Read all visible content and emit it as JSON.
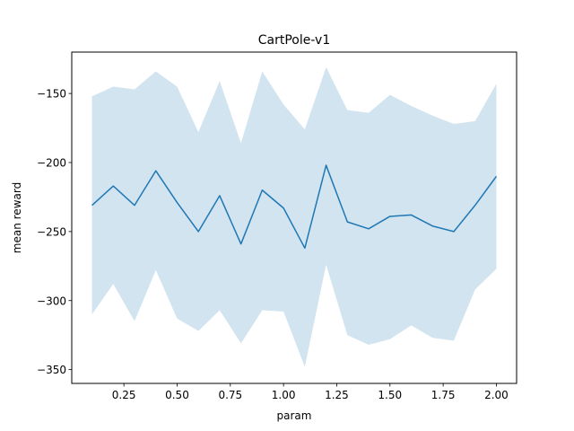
{
  "chart_data": {
    "type": "line",
    "title": "CartPole-v1",
    "xlabel": "param",
    "ylabel": "mean reward",
    "xlim": [
      0.005,
      2.095
    ],
    "ylim": [
      -360,
      -120
    ],
    "xticks": [
      0.25,
      0.5,
      0.75,
      1.0,
      1.25,
      1.5,
      1.75,
      2.0
    ],
    "xtick_labels": [
      "0.25",
      "0.50",
      "0.75",
      "1.00",
      "1.25",
      "1.50",
      "1.75",
      "2.00"
    ],
    "yticks": [
      -350,
      -300,
      -250,
      -200,
      -150
    ],
    "ytick_labels": [
      "−350",
      "−300",
      "−250",
      "−200",
      "−150"
    ],
    "grid": false,
    "colors": {
      "line": "#1f77b4",
      "band": "#1f77b4"
    },
    "x": [
      0.1,
      0.2,
      0.3,
      0.4,
      0.5,
      0.6,
      0.7,
      0.8,
      0.9,
      1.0,
      1.1,
      1.2,
      1.3,
      1.4,
      1.5,
      1.6,
      1.7,
      1.8,
      1.9,
      2.0
    ],
    "series": [
      {
        "values": [
          -231,
          -217,
          -231,
          -206,
          -229,
          -250,
          -224,
          -259,
          -220,
          -233,
          -262,
          -202,
          -243,
          -248,
          -239,
          -238,
          -246,
          -250,
          -231,
          -210
        ],
        "upper": [
          -152,
          -145,
          -147,
          -134,
          -145,
          -178,
          -141,
          -186,
          -134,
          -158,
          -176,
          -131,
          -162,
          -164,
          -151,
          -159,
          -166,
          -172,
          -170,
          -143
        ],
        "lower": [
          -310,
          -288,
          -315,
          -278,
          -313,
          -322,
          -307,
          -331,
          -307,
          -308,
          -348,
          -274,
          -325,
          -332,
          -328,
          -318,
          -327,
          -329,
          -292,
          -277
        ]
      }
    ]
  }
}
